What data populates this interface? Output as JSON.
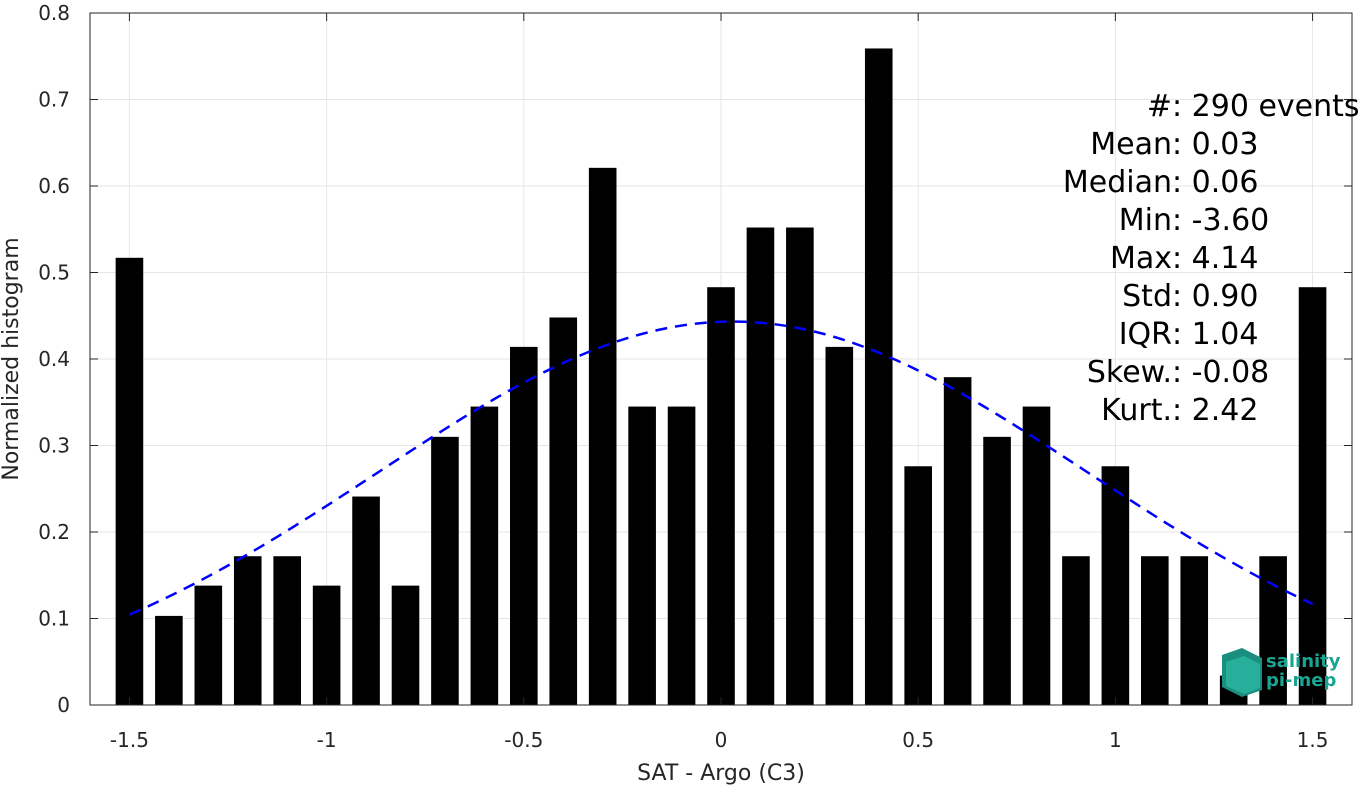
{
  "chart_data": {
    "type": "bar",
    "xlabel": "SAT - Argo (C3)",
    "ylabel": "Normalized histogram",
    "xlim": [
      -1.6,
      1.6
    ],
    "ylim": [
      0,
      0.8
    ],
    "grid": true,
    "xticks": [
      -1.5,
      -1,
      -0.5,
      0,
      0.5,
      1,
      1.5
    ],
    "xtick_labels": [
      "-1.5",
      "-1",
      "-0.5",
      "0",
      "0.5",
      "1",
      "1.5"
    ],
    "yticks": [
      0,
      0.1,
      0.2,
      0.3,
      0.4,
      0.5,
      0.6,
      0.7,
      0.8
    ],
    "ytick_labels": [
      "0",
      "0.1",
      "0.2",
      "0.3",
      "0.4",
      "0.5",
      "0.6",
      "0.7",
      "0.8"
    ],
    "bar_color": "#000000",
    "bins": [
      -1.5,
      -1.4,
      -1.3,
      -1.2,
      -1.1,
      -1.0,
      -0.9,
      -0.8,
      -0.7,
      -0.6,
      -0.5,
      -0.4,
      -0.3,
      -0.2,
      -0.1,
      0.0,
      0.1,
      0.2,
      0.3,
      0.4,
      0.5,
      0.6,
      0.7,
      0.8,
      0.9,
      1.0,
      1.1,
      1.2,
      1.3,
      1.4,
      1.5
    ],
    "values": [
      0.517,
      0.103,
      0.138,
      0.172,
      0.172,
      0.138,
      0.241,
      0.138,
      0.31,
      0.345,
      0.414,
      0.448,
      0.621,
      0.345,
      0.345,
      0.483,
      0.552,
      0.552,
      0.414,
      0.759,
      0.276,
      0.379,
      0.31,
      0.345,
      0.172,
      0.276,
      0.172,
      0.172,
      0.034,
      0.172,
      0.483
    ],
    "fit_curve": {
      "type": "gaussian",
      "mean": 0.03,
      "std": 0.9,
      "x_range": [
        -1.5,
        1.5
      ],
      "color": "#0000ff",
      "style": "dashed"
    },
    "stats": [
      {
        "label": "#  ",
        "value": ": 290 events"
      },
      {
        "label": "Mean ",
        "value": ": 0.03"
      },
      {
        "label": "Median ",
        "value": ": 0.06"
      },
      {
        "label": "Min ",
        "value": ": -3.60"
      },
      {
        "label": "Max ",
        "value": ": 4.14"
      },
      {
        "label": "Std ",
        "value": ": 0.90"
      },
      {
        "label": "IQR ",
        "value": ": 1.04"
      },
      {
        "label": "Skew. ",
        "value": ": -0.08"
      },
      {
        "label": "Kurt. ",
        "value": ": 2.42"
      }
    ],
    "logo": {
      "line1": "salinity",
      "line2": "pi-mep"
    }
  }
}
